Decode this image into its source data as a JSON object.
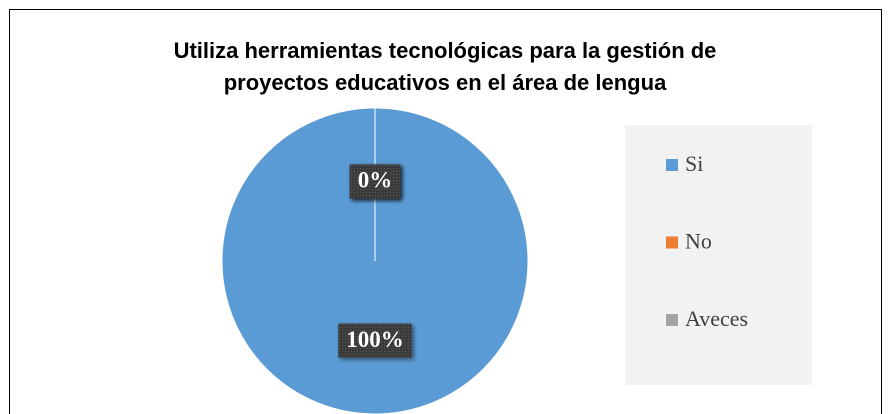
{
  "chart_data": {
    "type": "pie",
    "title": [
      "Utiliza herramientas tecnológicas para la gestión de",
      "proyectos educativos en el área de lengua"
    ],
    "categories": [
      "Si",
      "No",
      "Aveces"
    ],
    "values": [
      100,
      0,
      0
    ],
    "value_labels": [
      "100%",
      "0%",
      "0%"
    ],
    "colors": [
      "#5b9bd5",
      "#ed7d31",
      "#a5a5a5"
    ],
    "legend": "right"
  }
}
